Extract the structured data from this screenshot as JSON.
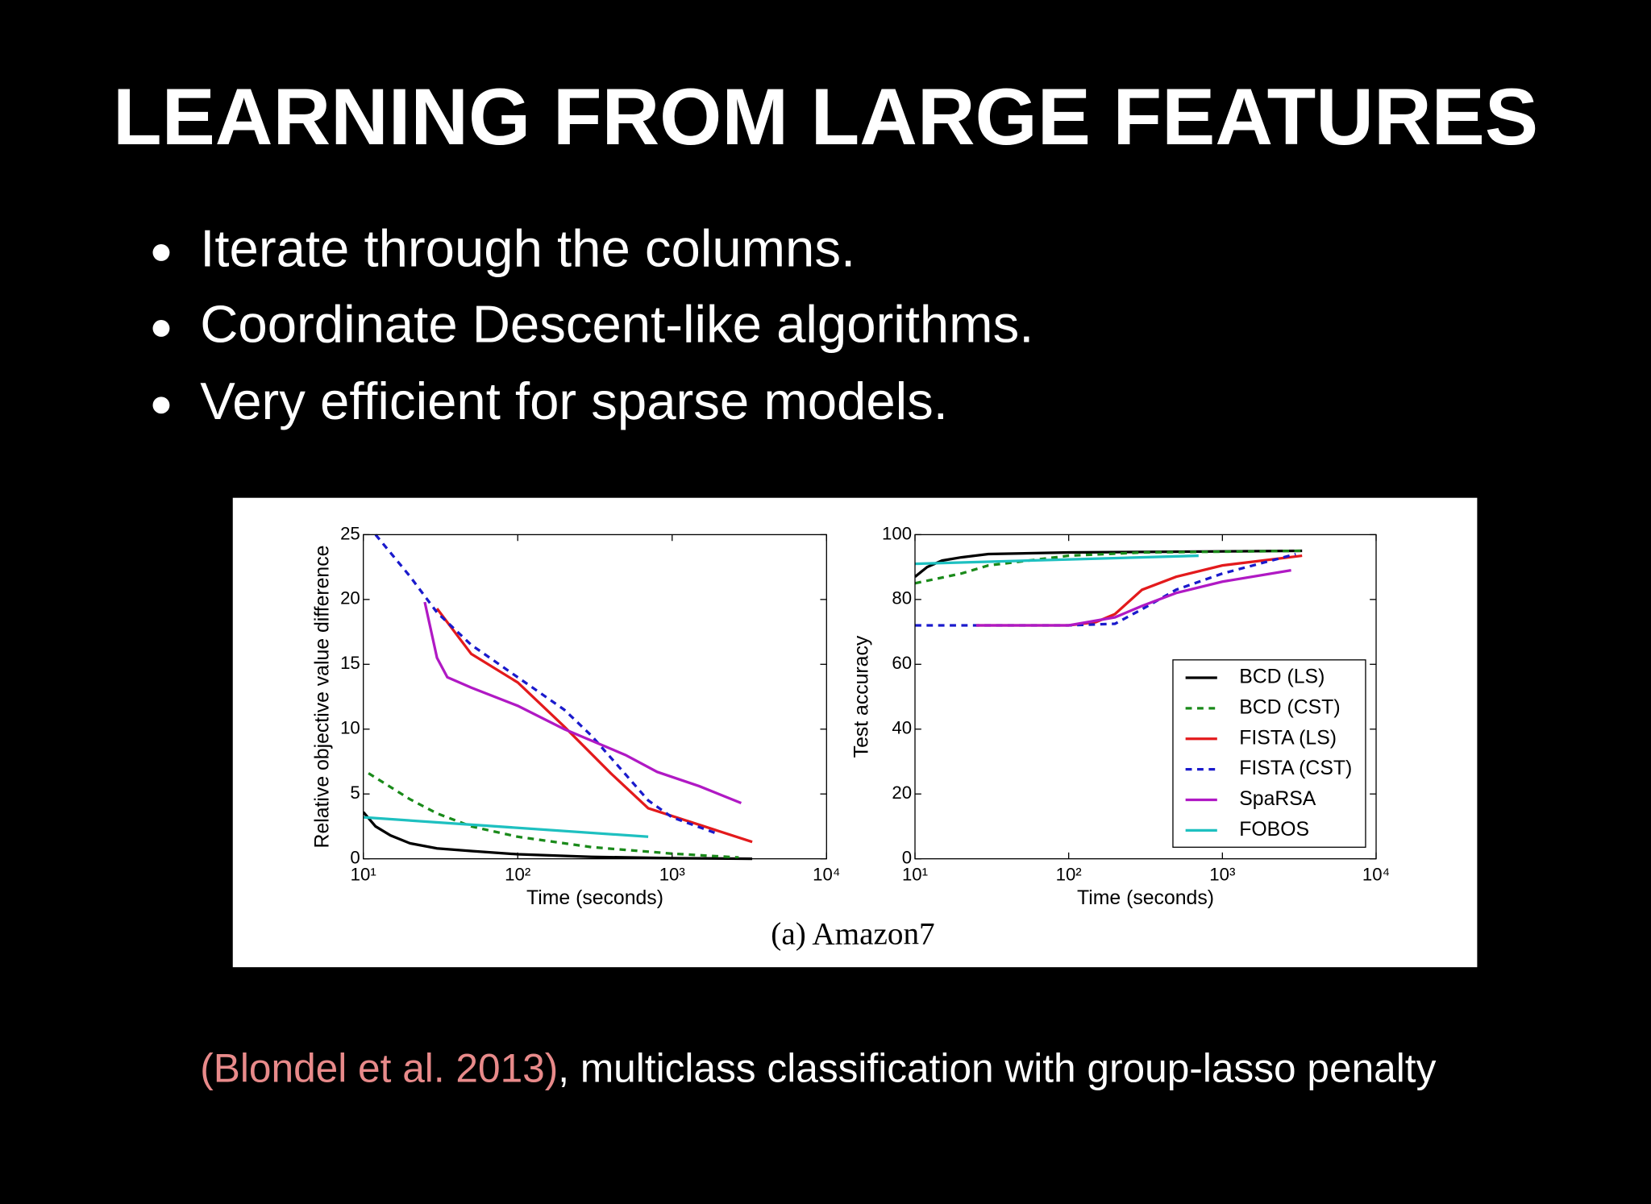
{
  "title": "LEARNING FROM LARGE FEATURES",
  "bullets": [
    "Iterate through the columns.",
    "Coordinate Descent-like algorithms.",
    "Very efficient for sparse models."
  ],
  "figure_caption": "(a) Amazon7",
  "citation": {
    "reference": "(Blondel et al. 2013)",
    "text": ", multiclass classification with group-lasso penalty"
  },
  "chart_data": [
    {
      "type": "line",
      "x_label": "Time (seconds)",
      "y_label": "Relative objective value difference",
      "xscale": "log",
      "xlim": [
        10,
        10000
      ],
      "xticks": [
        {
          "value": 10,
          "label": "10¹"
        },
        {
          "value": 100,
          "label": "10²"
        },
        {
          "value": 1000,
          "label": "10³"
        },
        {
          "value": 10000,
          "label": "10⁴"
        }
      ],
      "ylim": [
        0,
        25
      ],
      "yticks": [
        0,
        5,
        10,
        15,
        20,
        25
      ],
      "grid": false,
      "series": [
        {
          "color": "#000000",
          "dash": false,
          "x": [
            10,
            12,
            15,
            20,
            30,
            50,
            100,
            300,
            1000,
            3300
          ],
          "values": [
            3.6,
            2.5,
            1.8,
            1.2,
            0.8,
            0.6,
            0.35,
            0.15,
            0.05,
            0
          ]
        },
        {
          "color": "#1a8a1a",
          "dash": true,
          "x": [
            10.8,
            20,
            30,
            50,
            100,
            300,
            1000,
            2700
          ],
          "values": [
            6.6,
            4.6,
            3.5,
            2.5,
            1.7,
            0.9,
            0.4,
            0.1
          ]
        },
        {
          "color": "#e31a1c",
          "dash": false,
          "x": [
            30,
            50,
            100,
            200,
            400,
            700,
            1000,
            3300
          ],
          "values": [
            19.3,
            15.8,
            13.6,
            10.2,
            6.6,
            3.9,
            3.3,
            1.3
          ]
        },
        {
          "color": "#1a1acc",
          "dash": true,
          "x": [
            12,
            20,
            30,
            50,
            100,
            200,
            300,
            500,
            700,
            1000,
            2000
          ],
          "values": [
            25,
            21.8,
            19,
            16.5,
            14,
            11.5,
            9.5,
            6.5,
            4.5,
            3.2,
            1.9
          ]
        },
        {
          "color": "#b019c4",
          "dash": false,
          "x": [
            25,
            30,
            35,
            50,
            100,
            200,
            500,
            800,
            1500,
            2800
          ],
          "values": [
            19.8,
            15.5,
            14,
            13.2,
            11.8,
            10,
            8,
            6.7,
            5.6,
            4.3
          ]
        },
        {
          "color": "#1ec0c0",
          "dash": false,
          "x": [
            10,
            700
          ],
          "values": [
            3.2,
            1.7
          ]
        }
      ]
    },
    {
      "type": "line",
      "x_label": "Time (seconds)",
      "y_label": "Test accuracy",
      "xscale": "log",
      "xlim": [
        10,
        10000
      ],
      "xticks": [
        {
          "value": 10,
          "label": "10¹"
        },
        {
          "value": 100,
          "label": "10²"
        },
        {
          "value": 1000,
          "label": "10³"
        },
        {
          "value": 10000,
          "label": "10⁴"
        }
      ],
      "ylim": [
        0,
        100
      ],
      "yticks": [
        0,
        20,
        40,
        60,
        80,
        100
      ],
      "grid": false,
      "legend": "lower right",
      "series": [
        {
          "name": "BCD (LS)",
          "color": "#000000",
          "dash": false,
          "x": [
            10,
            12,
            15,
            20,
            30,
            100,
            3300
          ],
          "values": [
            87,
            90,
            92,
            93,
            94,
            94.5,
            95
          ]
        },
        {
          "name": "BCD (CST)",
          "color": "#1a8a1a",
          "dash": true,
          "x": [
            10,
            20,
            30,
            100,
            300,
            3300
          ],
          "values": [
            85,
            88,
            90.5,
            93.5,
            94.5,
            95
          ]
        },
        {
          "name": "FISTA (LS)",
          "color": "#e31a1c",
          "dash": false,
          "x": [
            25,
            100,
            150,
            200,
            300,
            500,
            1000,
            3300
          ],
          "values": [
            72,
            72,
            73,
            75.5,
            83,
            87,
            90.5,
            93.5
          ]
        },
        {
          "name": "FISTA (CST)",
          "color": "#1a1acc",
          "dash": true,
          "x": [
            10,
            100,
            200,
            300,
            500,
            1000,
            3000
          ],
          "values": [
            72,
            72,
            72.5,
            77,
            83,
            88,
            94
          ]
        },
        {
          "name": "SpaRSA",
          "color": "#b019c4",
          "dash": false,
          "x": [
            25,
            100,
            200,
            300,
            500,
            1000,
            2800
          ],
          "values": [
            72,
            72,
            74.5,
            78,
            82,
            85.5,
            89
          ]
        },
        {
          "name": "FOBOS",
          "color": "#1ec0c0",
          "dash": false,
          "x": [
            10,
            700
          ],
          "values": [
            91,
            93.5
          ]
        }
      ]
    }
  ]
}
